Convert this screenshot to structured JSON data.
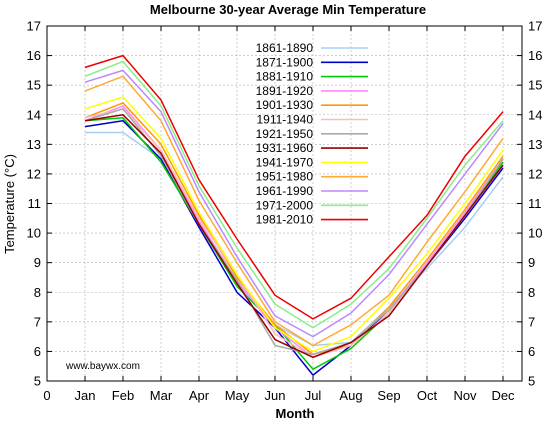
{
  "chart_data": {
    "type": "line",
    "title": "Melbourne 30-year Average Min Temperature",
    "xlabel": "Month",
    "ylabel": "Temperature (°C)",
    "credit": "www.baywx.com",
    "categories": [
      "Jan",
      "Feb",
      "Mar",
      "Apr",
      "May",
      "Jun",
      "Jul",
      "Aug",
      "Sep",
      "Oct",
      "Nov",
      "Dec"
    ],
    "x_ticks": [
      "0"
    ],
    "ylim": [
      5,
      17
    ],
    "y_ticks": [
      "5",
      "6",
      "7",
      "8",
      "9",
      "10",
      "11",
      "12",
      "13",
      "14",
      "15",
      "16",
      "17"
    ],
    "grid": true,
    "legend_position": "top-center",
    "series": [
      {
        "name": "1861-1890",
        "color": "#a9cdf0",
        "values": [
          13.4,
          13.4,
          12.5,
          10.2,
          8.3,
          6.9,
          6.2,
          6.3,
          7.5,
          8.8,
          10.2,
          11.9
        ]
      },
      {
        "name": "1871-1900",
        "color": "#0000cc",
        "values": [
          13.6,
          13.8,
          12.5,
          10.2,
          8.0,
          6.8,
          5.2,
          6.2,
          7.4,
          8.9,
          10.5,
          12.2
        ]
      },
      {
        "name": "1881-1910",
        "color": "#00cc00",
        "values": [
          13.8,
          13.9,
          12.4,
          10.3,
          8.2,
          6.9,
          5.4,
          6.1,
          7.3,
          8.9,
          10.6,
          12.4
        ]
      },
      {
        "name": "1891-1920",
        "color": "#ff88ff",
        "values": [
          13.8,
          14.3,
          12.8,
          10.4,
          8.4,
          6.8,
          5.8,
          6.3,
          7.4,
          9.0,
          10.7,
          12.5
        ]
      },
      {
        "name": "1901-1930",
        "color": "#ff9900",
        "values": [
          13.9,
          14.4,
          13.0,
          10.6,
          8.5,
          6.9,
          5.9,
          6.2,
          7.5,
          9.1,
          10.8,
          12.6
        ]
      },
      {
        "name": "1911-1940",
        "color": "#ffbbbb",
        "values": [
          13.9,
          14.2,
          12.8,
          10.5,
          8.6,
          6.6,
          5.8,
          6.2,
          7.3,
          8.9,
          10.6,
          12.5
        ]
      },
      {
        "name": "1921-1950",
        "color": "#aaaaaa",
        "values": [
          13.8,
          14.2,
          12.6,
          10.3,
          8.4,
          6.2,
          5.9,
          6.3,
          7.4,
          8.9,
          10.6,
          12.5
        ]
      },
      {
        "name": "1931-1960",
        "color": "#990000",
        "values": [
          13.8,
          14.0,
          12.7,
          10.3,
          8.3,
          6.4,
          5.8,
          6.3,
          7.2,
          8.9,
          10.6,
          12.3
        ]
      },
      {
        "name": "1941-1970",
        "color": "#ffff00",
        "values": [
          14.2,
          14.6,
          13.2,
          10.7,
          8.6,
          6.8,
          6.0,
          6.5,
          7.8,
          9.3,
          11.0,
          12.8
        ]
      },
      {
        "name": "1951-1980",
        "color": "#ffaa33",
        "values": [
          14.8,
          15.3,
          13.8,
          11.1,
          9.0,
          7.0,
          6.2,
          6.9,
          7.9,
          9.7,
          11.4,
          13.2
        ]
      },
      {
        "name": "1961-1990",
        "color": "#bb88ff",
        "values": [
          15.1,
          15.5,
          14.1,
          11.4,
          9.2,
          7.2,
          6.5,
          7.3,
          8.6,
          10.3,
          12.0,
          13.7
        ]
      },
      {
        "name": "1971-2000",
        "color": "#88ee88",
        "values": [
          15.3,
          15.8,
          14.3,
          11.6,
          9.5,
          7.6,
          6.8,
          7.6,
          8.8,
          10.5,
          12.3,
          13.8
        ]
      },
      {
        "name": "1981-2010",
        "color": "#ee0000",
        "values": [
          15.6,
          16.0,
          14.5,
          11.8,
          9.8,
          7.9,
          7.1,
          7.8,
          9.2,
          10.6,
          12.6,
          14.1
        ]
      }
    ]
  }
}
